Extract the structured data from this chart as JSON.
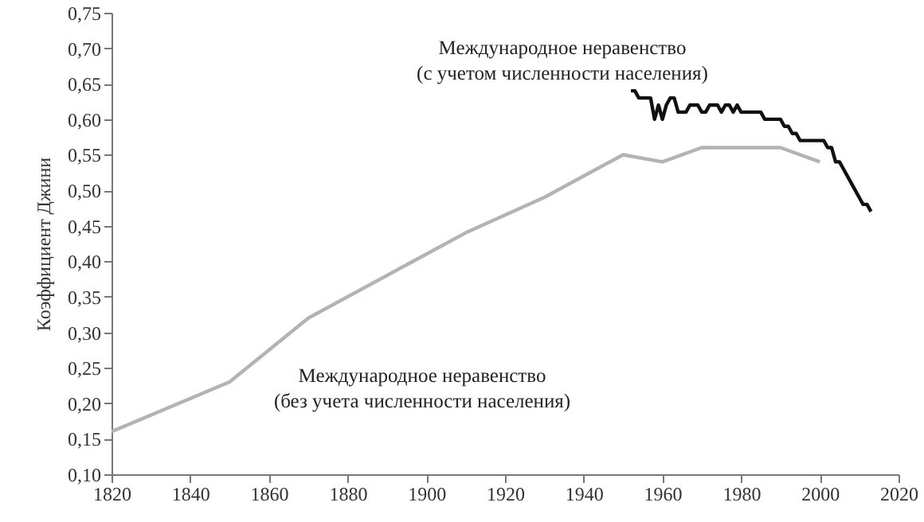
{
  "chart_data": {
    "type": "line",
    "ylabel": "Коэффициент Джини",
    "xlim": [
      1820,
      2020
    ],
    "xticks": [
      1820,
      1840,
      1860,
      1880,
      1900,
      1920,
      1940,
      1960,
      1980,
      2000,
      2020
    ],
    "ylim": [
      0.1,
      0.75
    ],
    "yticks": [
      {
        "value": 0.1,
        "label": "0,10"
      },
      {
        "value": 0.15,
        "label": "0,15"
      },
      {
        "value": 0.2,
        "label": "0,20"
      },
      {
        "value": 0.25,
        "label": "0,25"
      },
      {
        "value": 0.3,
        "label": "0,30"
      },
      {
        "value": 0.35,
        "label": "0,35"
      },
      {
        "value": 0.4,
        "label": "0,40"
      },
      {
        "value": 0.45,
        "label": "0,45"
      },
      {
        "value": 0.5,
        "label": "0,50"
      },
      {
        "value": 0.55,
        "label": "0,55"
      },
      {
        "value": 0.6,
        "label": "0,60"
      },
      {
        "value": 0.65,
        "label": "0,65"
      },
      {
        "value": 0.7,
        "label": "0,70"
      },
      {
        "value": 0.75,
        "label": "0,75"
      }
    ],
    "grid": false,
    "series": [
      {
        "name": "Международное неравенство (без учета численности населения)",
        "color": "#b3b3b3",
        "x": [
          1820,
          1850,
          1870,
          1910,
          1930,
          1950,
          1960,
          1970,
          1990,
          2000
        ],
        "values": [
          0.16,
          0.23,
          0.32,
          0.44,
          0.49,
          0.55,
          0.54,
          0.56,
          0.56,
          0.54
        ]
      },
      {
        "name": "Международное неравенство (с учетом численности населения)",
        "color": "#111111",
        "x": [
          1952,
          1953,
          1954,
          1956,
          1957,
          1958,
          1959,
          1960,
          1961,
          1962,
          1963,
          1964,
          1966,
          1967,
          1969,
          1970,
          1971,
          1972,
          1974,
          1975,
          1976,
          1977,
          1978,
          1979,
          1980,
          1985,
          1986,
          1990,
          1991,
          1992,
          1993,
          1994,
          1995,
          2000,
          2001,
          2002,
          2003,
          2004,
          2005,
          2006,
          2008,
          2010,
          2011,
          2012,
          2013
        ],
        "values": [
          0.64,
          0.64,
          0.63,
          0.63,
          0.63,
          0.6,
          0.62,
          0.6,
          0.62,
          0.63,
          0.63,
          0.61,
          0.61,
          0.62,
          0.62,
          0.61,
          0.61,
          0.62,
          0.62,
          0.61,
          0.62,
          0.62,
          0.61,
          0.62,
          0.61,
          0.61,
          0.6,
          0.6,
          0.59,
          0.59,
          0.58,
          0.58,
          0.57,
          0.57,
          0.57,
          0.56,
          0.56,
          0.54,
          0.54,
          0.53,
          0.51,
          0.49,
          0.48,
          0.48,
          0.47
        ]
      }
    ]
  }
}
